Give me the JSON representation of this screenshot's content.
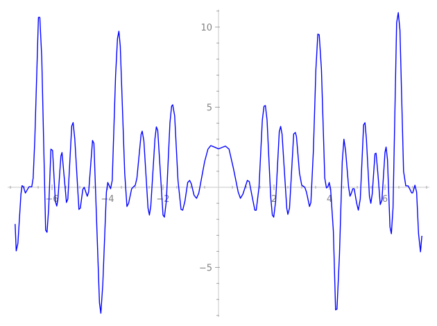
{
  "chart_data": {
    "type": "line",
    "title": "",
    "xlabel": "",
    "ylabel": "",
    "xlim": [
      -7.6,
      7.6
    ],
    "ylim": [
      -8.1,
      11.1
    ],
    "grid": false,
    "axes_through_origin": true,
    "x_ticks": [
      -6,
      -4,
      -2,
      2,
      4,
      6
    ],
    "x_tick_labels": [
      "−6",
      "−4",
      "−2",
      "2",
      "4",
      "6"
    ],
    "y_ticks": [
      10,
      5,
      -5
    ],
    "y_tick_labels": [
      "10",
      "5",
      "−5"
    ],
    "x_minor_step": 0.5,
    "y_minor_step": 1,
    "colors": {
      "line": "#0000ff",
      "axis": "#d0d0d0",
      "tick_label": "#808080"
    },
    "series": [
      {
        "x": [
          -7.33,
          -7.29,
          -7.23,
          -7.12,
          -7.08,
          -7.03,
          -6.96,
          -6.83,
          -6.73,
          -6.68,
          -6.62,
          -6.49,
          -6.44,
          -6.37,
          -6.23,
          -6.18,
          -6.12,
          -6.04,
          -5.98,
          -5.88,
          -5.83,
          -5.79,
          -5.68,
          -5.64,
          -5.48,
          -5.43,
          -5.29,
          -5.24,
          -5.18,
          -5.03,
          -4.98,
          -4.89,
          -4.84,
          -4.73,
          -4.68,
          -4.54,
          -4.49,
          -4.38,
          -4.29,
          -4.24,
          -4.17,
          -4.04,
          -3.99,
          -3.89,
          -3.83,
          -3.71,
          -3.64,
          -3.59,
          -3.54,
          -3.38,
          -3.3,
          -3.24,
          -3.13,
          -3.06,
          -3.0,
          -2.94,
          -2.79,
          -2.75,
          -2.69,
          -2.54,
          -2.49,
          -2.44,
          -2.29,
          -2.24,
          -2.19,
          -2.0,
          -1.95,
          -1.88,
          -1.75,
          -1.69,
          -1.65,
          -1.58,
          -1.46,
          -1.35,
          -1.29,
          -1.21,
          -1.11,
          -1.04,
          -0.98,
          -0.88,
          -0.79,
          -0.71,
          -0.5,
          -0.38,
          -0.28,
          -0.13,
          0.0,
          0.25,
          0.38,
          0.54,
          0.71,
          0.79,
          0.88,
          1.04,
          1.11,
          1.21,
          1.31,
          1.36,
          1.46,
          1.58,
          1.64,
          1.69,
          1.75,
          1.88,
          1.94,
          1.99,
          2.06,
          2.19,
          2.24,
          2.29,
          2.46,
          2.5,
          2.56,
          2.71,
          2.77,
          2.81,
          2.92,
          3.0,
          3.11,
          3.17,
          3.28,
          3.33,
          3.42,
          3.51,
          3.58,
          3.63,
          3.71,
          3.83,
          3.89,
          3.94,
          3.99,
          4.04,
          4.14,
          4.22,
          4.27,
          4.36,
          4.46,
          4.52,
          4.58,
          4.69,
          4.74,
          4.79,
          4.84,
          4.89,
          4.98,
          5.04,
          5.11,
          5.23,
          5.28,
          5.33,
          5.44,
          5.49,
          5.54,
          5.64,
          5.68,
          5.75,
          5.83,
          5.89,
          6.0,
          6.04,
          6.09,
          6.18,
          6.23,
          6.29,
          6.42,
          6.48,
          6.54,
          6.67,
          6.75,
          6.83,
          6.89,
          6.96,
          7.0,
          7.08,
          7.14,
          7.21,
          7.28,
          7.33
        ],
        "y": [
          -2.29,
          -3.97,
          -3.5,
          -0.43,
          0.1,
          0.03,
          -0.36,
          0.03,
          0.03,
          0.57,
          3.0,
          10.6,
          10.6,
          8.1,
          -2.68,
          -2.81,
          -1.3,
          2.38,
          2.3,
          -0.87,
          -1.17,
          -0.8,
          1.95,
          2.17,
          -0.95,
          -0.73,
          3.82,
          4.04,
          3.03,
          -1.38,
          -1.3,
          -0.13,
          0.0,
          -0.56,
          -0.3,
          2.92,
          2.74,
          -2.74,
          -7.22,
          -7.86,
          -6.06,
          -0.3,
          0.3,
          -0.09,
          0.43,
          6.93,
          9.3,
          9.74,
          8.8,
          0.87,
          -1.2,
          -1.0,
          -0.09,
          0.03,
          0.13,
          0.57,
          3.3,
          3.5,
          2.9,
          -1.3,
          -1.73,
          -1.17,
          3.03,
          3.77,
          3.55,
          -1.73,
          -1.86,
          -0.87,
          4.03,
          5.06,
          5.15,
          4.46,
          0.43,
          -1.38,
          -1.43,
          -0.87,
          0.3,
          0.43,
          0.22,
          -0.5,
          -0.69,
          -0.36,
          1.6,
          2.38,
          2.6,
          2.5,
          2.4,
          2.57,
          2.38,
          1.16,
          -0.3,
          -0.69,
          -0.43,
          0.43,
          0.35,
          -0.56,
          -1.43,
          -1.43,
          0.0,
          4.2,
          5.06,
          5.1,
          4.2,
          -0.56,
          -1.73,
          -1.86,
          -0.87,
          3.46,
          3.8,
          3.33,
          -1.3,
          -1.69,
          -1.3,
          3.33,
          3.42,
          3.16,
          0.87,
          0.13,
          0.0,
          -0.3,
          -1.2,
          -0.95,
          2.3,
          7.36,
          9.56,
          9.52,
          7.36,
          0.57,
          -0.04,
          0.03,
          0.3,
          -0.09,
          -2.74,
          -7.65,
          -7.6,
          -4.2,
          1.6,
          3.0,
          2.3,
          0.0,
          -0.56,
          -0.36,
          -0.09,
          -0.09,
          -1.0,
          -1.43,
          -0.73,
          3.9,
          4.03,
          3.03,
          -0.56,
          -1.0,
          -0.43,
          2.1,
          2.12,
          0.74,
          -1.08,
          -0.8,
          2.17,
          2.51,
          1.73,
          -2.47,
          -2.9,
          -1.3,
          10.26,
          10.9,
          9.8,
          1.0,
          0.09,
          0.09,
          -0.09,
          -0.35,
          -0.35,
          0.13,
          -0.3,
          -2.9,
          -4.03,
          -3.03
        ]
      }
    ]
  }
}
